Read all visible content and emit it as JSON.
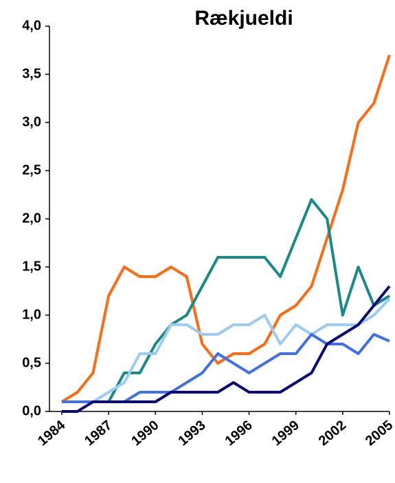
{
  "chart_data": {
    "type": "line",
    "title": "Rækjueldi",
    "x": [
      1984,
      1985,
      1986,
      1987,
      1988,
      1989,
      1990,
      1991,
      1992,
      1993,
      1994,
      1995,
      1996,
      1997,
      1998,
      1999,
      2000,
      2001,
      2002,
      2003,
      2004,
      2005
    ],
    "xlim": [
      1984,
      2005
    ],
    "xticks": [
      1984,
      1987,
      1990,
      1993,
      1996,
      1999,
      2002,
      2005
    ],
    "ylim": [
      0,
      4
    ],
    "yticks": [
      {
        "value": 0,
        "label": "0,0"
      },
      {
        "value": 0.5,
        "label": "0,5"
      },
      {
        "value": 1,
        "label": "1,0"
      },
      {
        "value": 1.5,
        "label": "1,5"
      },
      {
        "value": 2,
        "label": "2,0"
      },
      {
        "value": 2.5,
        "label": "2,5"
      },
      {
        "value": 3,
        "label": "3,0"
      },
      {
        "value": 3.5,
        "label": "3,5"
      },
      {
        "value": 4,
        "label": "4,0"
      }
    ],
    "series": [
      {
        "color": "#ff6a13",
        "values": [
          0.1,
          0.2,
          0.4,
          1.2,
          1.5,
          1.4,
          1.4,
          1.5,
          1.4,
          0.7,
          0.5,
          0.6,
          0.6,
          0.7,
          1.0,
          1.1,
          1.3,
          1.8,
          2.3,
          3.0,
          3.2,
          3.7
        ]
      },
      {
        "color": "#1a8a86",
        "values": [
          0.1,
          0.1,
          0.1,
          0.1,
          0.4,
          0.4,
          0.7,
          0.9,
          1.0,
          1.3,
          1.6,
          1.6,
          1.6,
          1.6,
          1.4,
          1.8,
          2.2,
          2.0,
          1.0,
          1.5,
          1.1,
          1.2
        ]
      },
      {
        "color": "#9ccbf5",
        "values": [
          0.1,
          0.1,
          0.1,
          0.2,
          0.3,
          0.6,
          0.6,
          0.9,
          0.9,
          0.8,
          0.8,
          0.9,
          0.9,
          1.0,
          0.7,
          0.9,
          0.8,
          0.9,
          0.9,
          0.9,
          1.0,
          1.17
        ]
      },
      {
        "color": "#4070e8",
        "values": [
          0.1,
          0.1,
          0.1,
          0.1,
          0.1,
          0.2,
          0.2,
          0.2,
          0.3,
          0.4,
          0.6,
          0.5,
          0.4,
          0.5,
          0.6,
          0.6,
          0.8,
          0.7,
          0.7,
          0.6,
          0.8,
          0.73
        ]
      },
      {
        "color": "#0a0a78",
        "values": [
          0,
          0,
          0.1,
          0.1,
          0.1,
          0.1,
          0.1,
          0.2,
          0.2,
          0.2,
          0.2,
          0.3,
          0.2,
          0.2,
          0.2,
          0.3,
          0.4,
          0.7,
          0.8,
          0.9,
          1.1,
          1.3
        ]
      }
    ]
  }
}
